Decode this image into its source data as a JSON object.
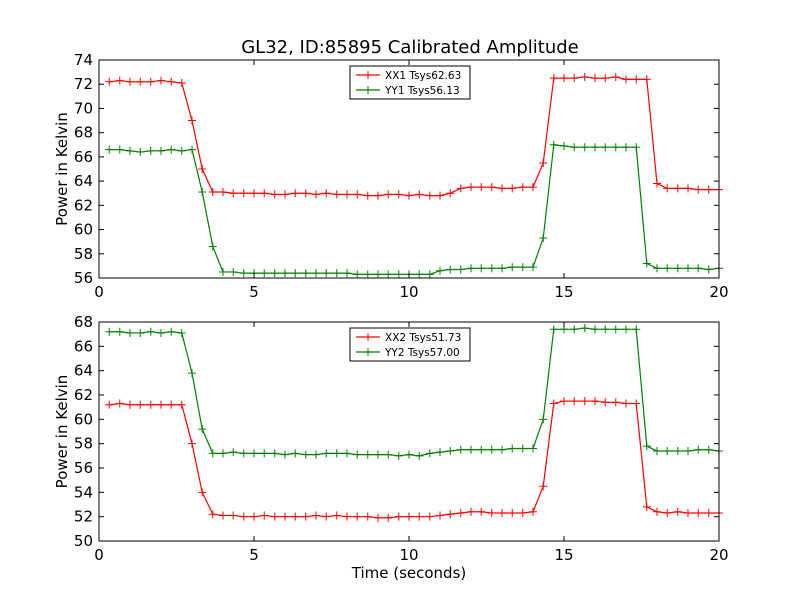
{
  "chart_data": [
    {
      "type": "line",
      "title": "GL32, ID:85895 Calibrated Amplitude",
      "xlabel": "",
      "ylabel": "Power in Kelvin",
      "xlim": [
        0,
        20
      ],
      "ylim": [
        56,
        74
      ],
      "xticks": [
        0,
        5,
        10,
        15,
        20
      ],
      "yticks": [
        56,
        58,
        60,
        62,
        64,
        66,
        68,
        70,
        72,
        74
      ],
      "grid": false,
      "legend_position": "top-center",
      "x": [
        0.33,
        0.67,
        1.0,
        1.33,
        1.67,
        2.0,
        2.33,
        2.67,
        3.0,
        3.33,
        3.67,
        4.0,
        4.33,
        4.67,
        5.0,
        5.33,
        5.67,
        6.0,
        6.33,
        6.67,
        7.0,
        7.33,
        7.67,
        8.0,
        8.33,
        8.67,
        9.0,
        9.33,
        9.67,
        10.0,
        10.33,
        10.67,
        11.0,
        11.33,
        11.67,
        12.0,
        12.33,
        12.67,
        13.0,
        13.33,
        13.67,
        14.0,
        14.33,
        14.67,
        15.0,
        15.33,
        15.67,
        16.0,
        16.33,
        16.67,
        17.0,
        17.33,
        17.67,
        18.0,
        18.33,
        18.67,
        19.0,
        19.33,
        19.67,
        20.0
      ],
      "series": [
        {
          "name": "XX1 Tsys62.63",
          "color": "#ff0000",
          "values": [
            72.2,
            72.3,
            72.2,
            72.2,
            72.2,
            72.3,
            72.2,
            72.1,
            69.0,
            65.0,
            63.1,
            63.1,
            63.0,
            63.0,
            63.0,
            63.0,
            62.9,
            62.9,
            63.0,
            63.0,
            62.9,
            63.0,
            62.9,
            62.9,
            62.9,
            62.8,
            62.8,
            62.9,
            62.9,
            62.8,
            62.9,
            62.8,
            62.8,
            63.0,
            63.4,
            63.5,
            63.5,
            63.5,
            63.4,
            63.4,
            63.5,
            63.5,
            65.5,
            72.5,
            72.5,
            72.5,
            72.6,
            72.5,
            72.5,
            72.6,
            72.4,
            72.4,
            72.4,
            63.8,
            63.4,
            63.4,
            63.4,
            63.3,
            63.3,
            63.3
          ]
        },
        {
          "name": "YY1 Tsys56.13",
          "color": "#008000",
          "values": [
            66.6,
            66.6,
            66.5,
            66.4,
            66.5,
            66.5,
            66.6,
            66.5,
            66.6,
            63.1,
            58.6,
            56.5,
            56.5,
            56.4,
            56.4,
            56.4,
            56.4,
            56.4,
            56.4,
            56.4,
            56.4,
            56.4,
            56.4,
            56.4,
            56.3,
            56.3,
            56.3,
            56.3,
            56.3,
            56.3,
            56.3,
            56.3,
            56.6,
            56.7,
            56.7,
            56.8,
            56.8,
            56.8,
            56.8,
            56.9,
            56.9,
            56.9,
            59.3,
            67.0,
            66.9,
            66.8,
            66.8,
            66.8,
            66.8,
            66.8,
            66.8,
            66.8,
            57.2,
            56.8,
            56.8,
            56.8,
            56.8,
            56.8,
            56.7,
            56.8
          ]
        }
      ]
    },
    {
      "type": "line",
      "title": "",
      "xlabel": "Time (seconds)",
      "ylabel": "Power in Kelvin",
      "xlim": [
        0,
        20
      ],
      "ylim": [
        50,
        68
      ],
      "xticks": [
        0,
        5,
        10,
        15,
        20
      ],
      "yticks": [
        50,
        52,
        54,
        56,
        58,
        60,
        62,
        64,
        66,
        68
      ],
      "grid": false,
      "legend_position": "top-center",
      "x": [
        0.33,
        0.67,
        1.0,
        1.33,
        1.67,
        2.0,
        2.33,
        2.67,
        3.0,
        3.33,
        3.67,
        4.0,
        4.33,
        4.67,
        5.0,
        5.33,
        5.67,
        6.0,
        6.33,
        6.67,
        7.0,
        7.33,
        7.67,
        8.0,
        8.33,
        8.67,
        9.0,
        9.33,
        9.67,
        10.0,
        10.33,
        10.67,
        11.0,
        11.33,
        11.67,
        12.0,
        12.33,
        12.67,
        13.0,
        13.33,
        13.67,
        14.0,
        14.33,
        14.67,
        15.0,
        15.33,
        15.67,
        16.0,
        16.33,
        16.67,
        17.0,
        17.33,
        17.67,
        18.0,
        18.33,
        18.67,
        19.0,
        19.33,
        19.67,
        20.0
      ],
      "series": [
        {
          "name": "XX2 Tsys51.73",
          "color": "#ff0000",
          "values": [
            61.2,
            61.3,
            61.2,
            61.2,
            61.2,
            61.2,
            61.2,
            61.2,
            58.0,
            54.0,
            52.2,
            52.1,
            52.1,
            52.0,
            52.0,
            52.1,
            52.0,
            52.0,
            52.0,
            52.0,
            52.1,
            52.0,
            52.1,
            52.0,
            52.0,
            52.0,
            51.9,
            51.9,
            52.0,
            52.0,
            52.0,
            52.0,
            52.1,
            52.2,
            52.3,
            52.4,
            52.4,
            52.3,
            52.3,
            52.3,
            52.3,
            52.4,
            54.5,
            61.3,
            61.5,
            61.5,
            61.5,
            61.5,
            61.4,
            61.4,
            61.3,
            61.3,
            52.8,
            52.4,
            52.3,
            52.4,
            52.3,
            52.3,
            52.3,
            52.3
          ]
        },
        {
          "name": "YY2 Tsys57.00",
          "color": "#008000",
          "values": [
            67.2,
            67.2,
            67.1,
            67.1,
            67.2,
            67.1,
            67.2,
            67.1,
            63.8,
            59.2,
            57.2,
            57.2,
            57.3,
            57.2,
            57.2,
            57.2,
            57.2,
            57.1,
            57.2,
            57.1,
            57.1,
            57.2,
            57.2,
            57.2,
            57.1,
            57.1,
            57.1,
            57.1,
            57.0,
            57.1,
            57.0,
            57.2,
            57.3,
            57.4,
            57.5,
            57.5,
            57.5,
            57.5,
            57.5,
            57.6,
            57.6,
            57.6,
            60.0,
            67.4,
            67.4,
            67.4,
            67.5,
            67.4,
            67.4,
            67.4,
            67.4,
            67.4,
            57.8,
            57.4,
            57.4,
            57.4,
            57.4,
            57.5,
            57.5,
            57.4
          ]
        }
      ]
    }
  ]
}
